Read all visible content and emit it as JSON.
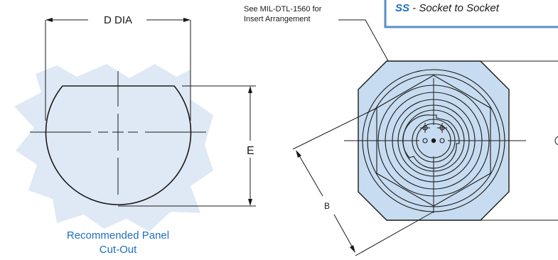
{
  "cutout": {
    "dimension_d": "D DIA",
    "dimension_e": "E",
    "caption_line1": "Recommended Panel",
    "caption_line2": "Cut-Out"
  },
  "connector": {
    "note_line1": "See MIL-DTL-1560 for",
    "note_line2": "Insert Arrangement",
    "dimension_b": "B",
    "banner_code": "SS",
    "banner_text": " - Socket to Socket"
  },
  "colors": {
    "burst_fill": "#dfe9f5",
    "connector_fill": "#c7dcf0",
    "caption_blue": "#1f6fc0",
    "banner_blue": "#1f6fc0",
    "banner_border": "#5a8fc8"
  }
}
